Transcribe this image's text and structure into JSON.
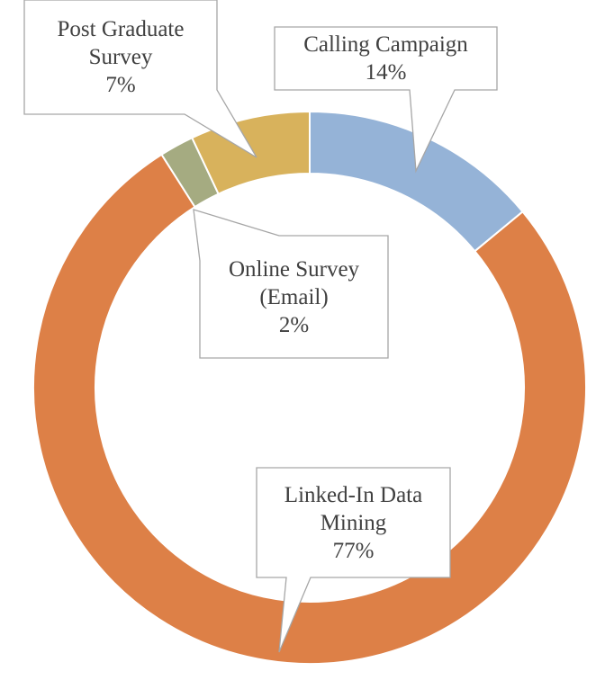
{
  "chart_data": {
    "type": "donut",
    "categories": [
      "Calling Campaign",
      "Linked-In Data Mining",
      "Online Survey (Email)",
      "Post Graduate Survey"
    ],
    "values": [
      14,
      77,
      2,
      7
    ],
    "value_labels": [
      "14%",
      "77%",
      "2%",
      "7%"
    ],
    "colors": [
      "#95b3d7",
      "#dd8047",
      "#a5ab81",
      "#d8b25c"
    ]
  }
}
